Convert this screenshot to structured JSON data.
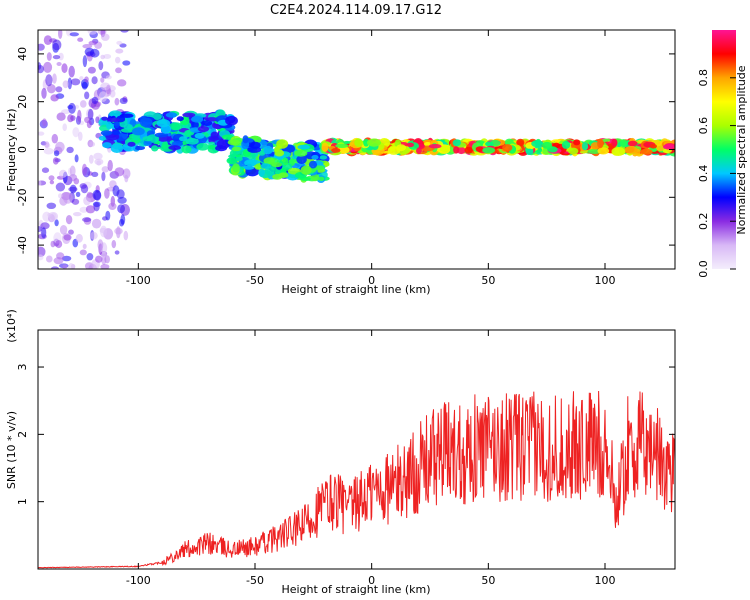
{
  "title": "C2E4.2024.114.09.17.G12",
  "chart_data": [
    {
      "type": "heatmap",
      "xlabel": "Height of straight line (km)",
      "ylabel": "Frequency (Hz)",
      "xlim": [
        -143,
        130
      ],
      "ylim": [
        -50,
        50
      ],
      "x_ticks": [
        -100,
        -50,
        0,
        50,
        100
      ],
      "y_ticks": [
        -40,
        -20,
        0,
        20,
        40
      ],
      "colorbar": {
        "label": "Normalized spectral amplitude",
        "range": [
          0,
          1
        ],
        "ticks": [
          "0.0",
          "0.2",
          "0.4",
          "0.6",
          "0.8"
        ],
        "stops": [
          "#f4eefc",
          "#d8b8f6",
          "#8a2be2",
          "#0000ff",
          "#00c8ff",
          "#00ff66",
          "#aaff00",
          "#ffff00",
          "#ffa500",
          "#ff0000",
          "#ff1493"
        ]
      },
      "features": [
        {
          "x": [
            -143,
            -105
          ],
          "y": [
            -50,
            50
          ],
          "amplitude": [
            0.05,
            0.3
          ],
          "kind": "scattered"
        },
        {
          "x": [
            -115,
            -60
          ],
          "y": [
            0,
            15
          ],
          "amplitude": [
            0.25,
            0.5
          ],
          "kind": "band"
        },
        {
          "x": [
            -60,
            -20
          ],
          "y": [
            -10,
            5
          ],
          "amplitude": [
            0.3,
            0.6
          ],
          "kind": "band"
        },
        {
          "x": [
            -20,
            130
          ],
          "y": [
            -1,
            3
          ],
          "amplitude": [
            0.45,
            1.0
          ],
          "kind": "band"
        }
      ]
    },
    {
      "type": "line",
      "xlabel": "Height of straight line (km)",
      "ylabel": "SNR (10 * v/v)",
      "y_multiplier": "(x10⁴)",
      "xlim": [
        -143,
        130
      ],
      "ylim": [
        0,
        3.55
      ],
      "x_ticks": [
        -100,
        -50,
        0,
        50,
        100
      ],
      "y_ticks": [
        1,
        2,
        3
      ],
      "color": "#ee2222",
      "envelope_x": [
        -143,
        -100,
        -90,
        -80,
        -70,
        -60,
        -50,
        -40,
        -30,
        -25,
        -20,
        -15,
        -10,
        -5,
        0,
        10,
        20,
        25,
        30,
        40,
        50,
        60,
        70,
        80,
        90,
        100,
        105,
        110,
        120,
        128,
        130
      ],
      "envelope_y": [
        0.02,
        0.04,
        0.1,
        0.3,
        0.4,
        0.3,
        0.35,
        0.5,
        0.65,
        0.85,
        1.0,
        1.1,
        0.9,
        1.05,
        1.2,
        1.3,
        1.55,
        1.7,
        1.8,
        1.85,
        1.88,
        1.9,
        1.9,
        1.88,
        1.9,
        1.95,
        1.0,
        1.9,
        1.9,
        1.5,
        1.6
      ]
    }
  ]
}
